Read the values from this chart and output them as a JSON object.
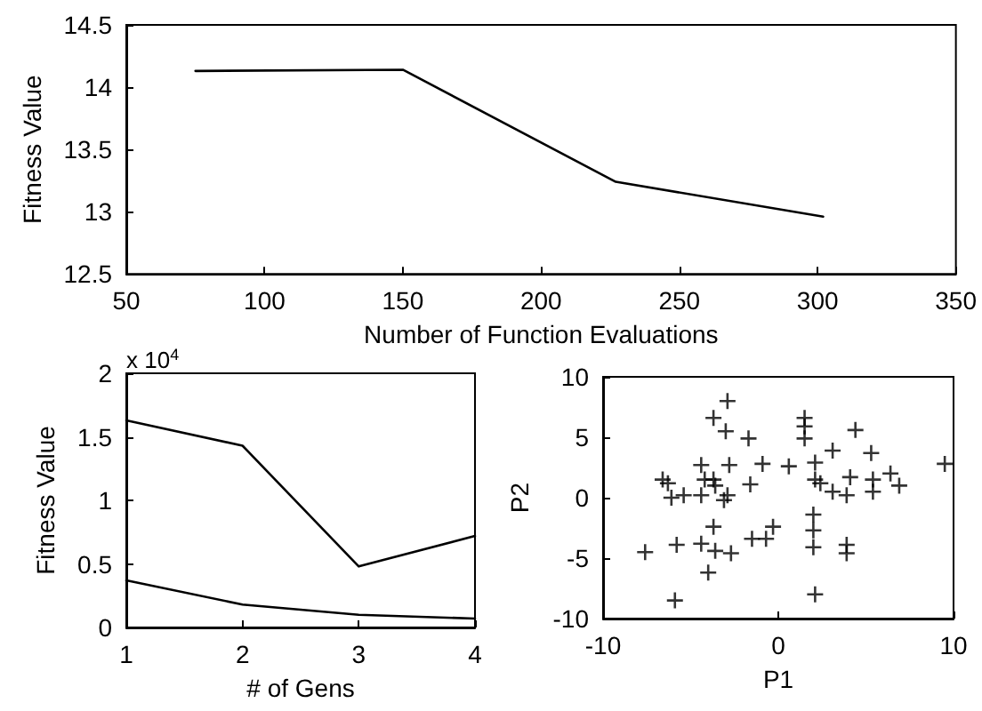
{
  "chart_data": [
    {
      "type": "line",
      "xlabel": "Number of Function Evaluations",
      "ylabel": "Fitness Value",
      "marker": "none",
      "x": [
        75,
        150,
        227,
        302
      ],
      "series": [
        {
          "color": "#000000",
          "values": [
            14.13,
            14.14,
            13.24,
            12.96
          ]
        }
      ],
      "xlim": [
        50,
        350
      ],
      "xticks": [
        50,
        100,
        150,
        200,
        250,
        300,
        350
      ],
      "ylim": [
        12.5,
        14.5
      ],
      "yticks": [
        12.5,
        13,
        13.5,
        14,
        14.5
      ]
    },
    {
      "type": "line",
      "xlabel": "# of Gens",
      "ylabel": "Fitness Value",
      "marker": "none",
      "annotations": [
        "x 10$^{4}$"
      ],
      "x": [
        1,
        2,
        3,
        4
      ],
      "series": [
        {
          "color": "#000000",
          "values": [
            1.63,
            1.43,
            0.48,
            0.72
          ]
        },
        {
          "color": "#000000",
          "values": [
            0.37,
            0.18,
            0.1,
            0.07
          ]
        }
      ],
      "xlim": [
        1,
        4
      ],
      "xticks": [
        1,
        2,
        3,
        4
      ],
      "ylim": [
        0,
        2
      ],
      "yticks": [
        0,
        0.5,
        1,
        1.5,
        2
      ]
    },
    {
      "type": "scatter",
      "xlabel": "P1",
      "ylabel": "P2",
      "marker": "cross",
      "x": [
        -2.9,
        -3.7,
        -3.0,
        -1.7,
        1.5,
        1.5,
        1.5,
        4.4,
        5.3,
        3.1,
        2.1,
        0.6,
        -0.9,
        -2.8,
        -4.4,
        -6.6,
        -6.3,
        -6.1,
        -5.4,
        -4.4,
        -4.2,
        -3.7,
        -3.6,
        -2.9,
        -3.1,
        -1.6,
        2.1,
        2.4,
        3.1,
        4.1,
        3.9,
        5.4,
        5.4,
        6.4,
        6.9,
        9.5,
        -0.3,
        -3.7,
        -1.5,
        -0.7,
        -4.4,
        -5.8,
        -7.6,
        -3.6,
        -2.7,
        2.0,
        2.0,
        2.0,
        3.9,
        3.9,
        -4.0,
        -5.9,
        2.1
      ],
      "series": [
        {
          "color": "#000000",
          "values": [
            8.0,
            6.6,
            5.5,
            4.9,
            6.6,
            5.9,
            4.9,
            5.6,
            3.7,
            3.9,
            2.9,
            2.6,
            2.8,
            2.7,
            2.7,
            1.5,
            1.2,
            0,
            0.2,
            0.2,
            1.5,
            1.5,
            1.0,
            0.2,
            -0.2,
            1.1,
            1.5,
            1.2,
            0.5,
            1.7,
            0.2,
            1.5,
            0.5,
            2.0,
            1.0,
            2.8,
            -2.4,
            -2.4,
            -3.4,
            -3.4,
            -3.8,
            -3.9,
            -4.5,
            -4.4,
            -4.6,
            -1.4,
            -2.7,
            -4.1,
            -3.9,
            -4.6,
            -6.2,
            -8.5,
            -8.0
          ]
        }
      ],
      "xlim": [
        -10,
        10
      ],
      "xticks": [
        -10,
        0,
        10
      ],
      "ylim": [
        -10,
        10
      ],
      "yticks": [
        -10,
        -5,
        0,
        5,
        10
      ]
    }
  ]
}
